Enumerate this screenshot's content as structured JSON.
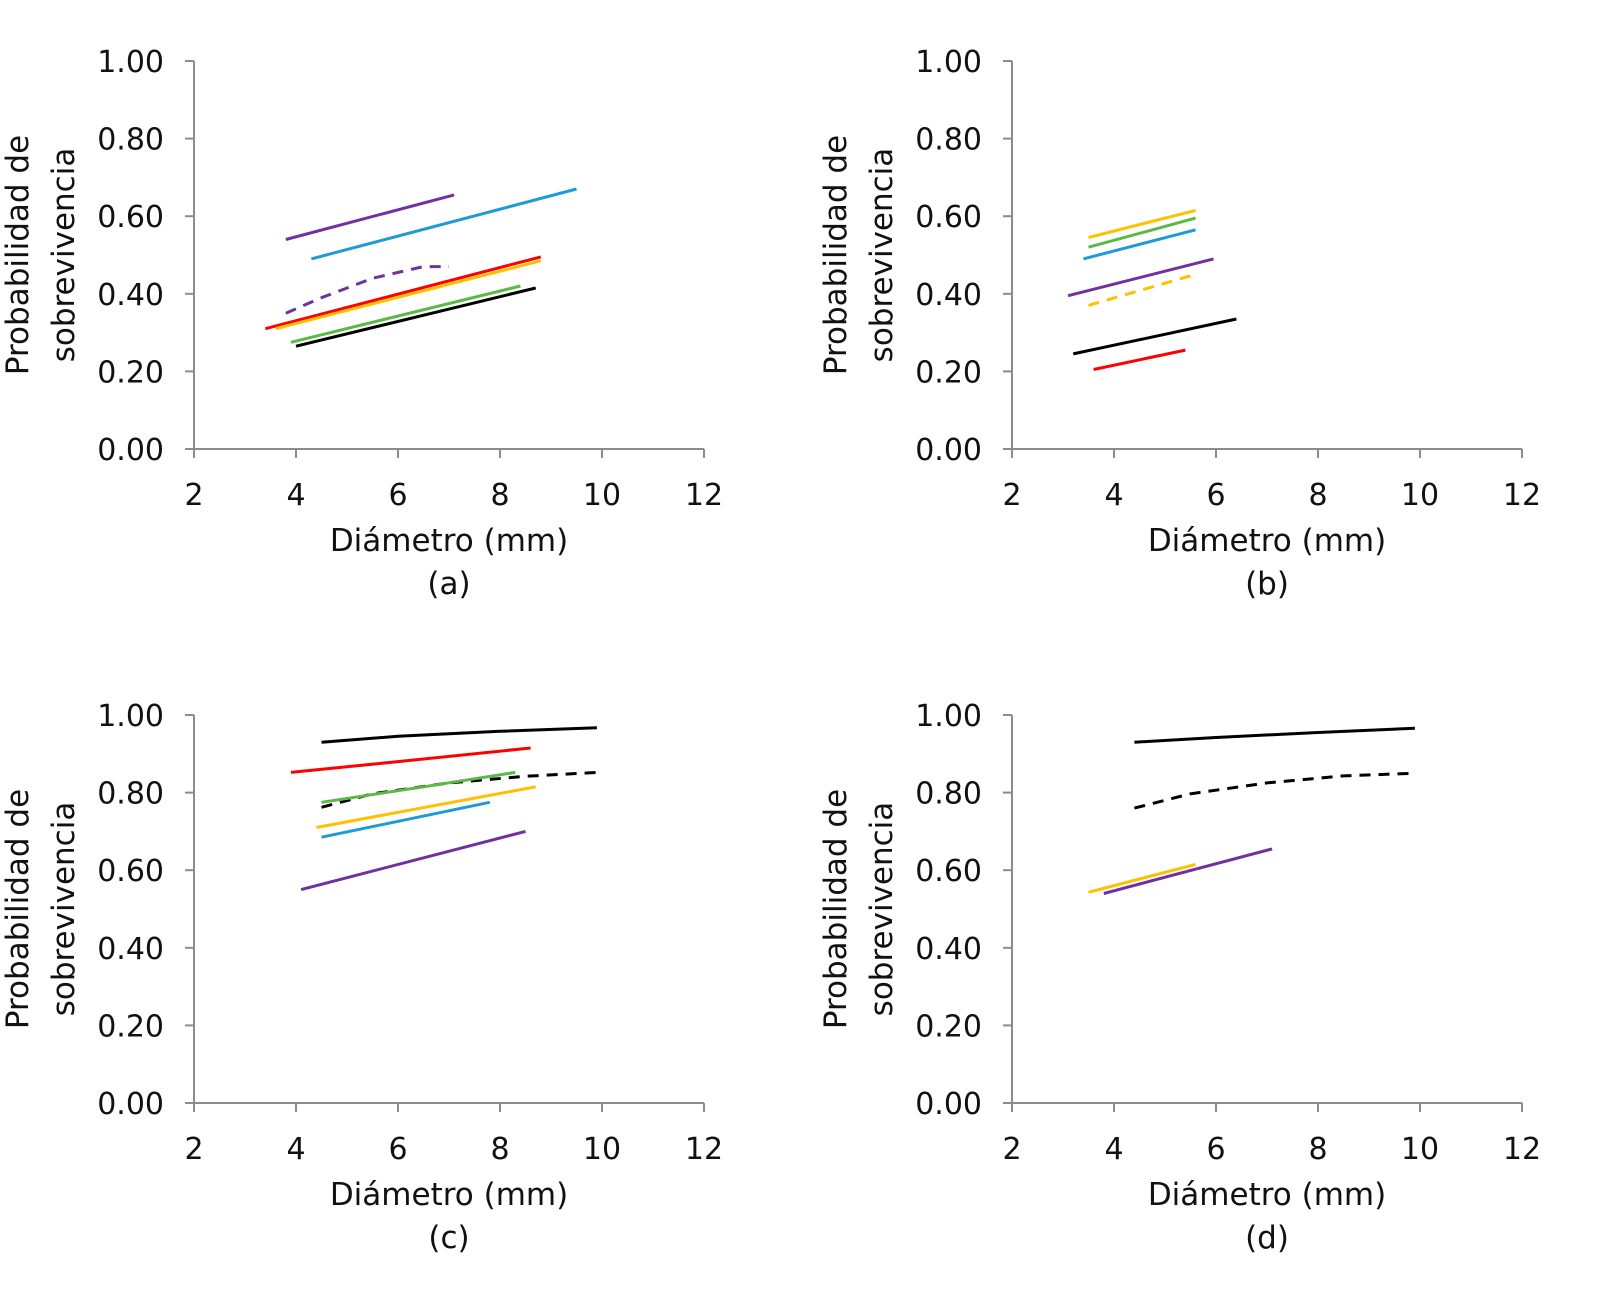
{
  "figure": {
    "panels": [
      "(a)",
      "(b)",
      "(c)",
      "(d)"
    ]
  },
  "colors": {
    "purple": "#7030A0",
    "blue": "#1E9BD7",
    "red": "#FF0000",
    "orange": "#FFC000",
    "green": "#5BB947",
    "black": "#000000"
  },
  "chart_data": [
    {
      "type": "line",
      "panel_label": "(a)",
      "xlabel": "Diámetro (mm)",
      "ylabel_line1": "Probabilidad de",
      "ylabel_line2": "sobrevivencia",
      "xlim": [
        2,
        12
      ],
      "ylim": [
        0,
        1
      ],
      "xticks": [
        "2",
        "4",
        "6",
        "8",
        "10",
        "12"
      ],
      "yticks": [
        "0.00",
        "0.20",
        "0.40",
        "0.60",
        "0.80",
        "1.00"
      ],
      "grid": false,
      "series": [
        {
          "color": "purple",
          "dashed": false,
          "x": [
            3.8,
            7.1
          ],
          "y": [
            0.54,
            0.655
          ]
        },
        {
          "color": "blue",
          "dashed": false,
          "x": [
            4.3,
            9.5
          ],
          "y": [
            0.49,
            0.67
          ]
        },
        {
          "color": "purple",
          "dashed": true,
          "x": [
            3.8,
            4.5,
            5.5,
            6.5,
            7.0
          ],
          "y": [
            0.35,
            0.39,
            0.44,
            0.47,
            0.47
          ]
        },
        {
          "color": "red",
          "dashed": false,
          "x": [
            3.4,
            8.8
          ],
          "y": [
            0.31,
            0.495
          ]
        },
        {
          "color": "orange",
          "dashed": false,
          "x": [
            3.6,
            8.8
          ],
          "y": [
            0.31,
            0.485
          ]
        },
        {
          "color": "green",
          "dashed": false,
          "x": [
            3.9,
            8.4
          ],
          "y": [
            0.275,
            0.42
          ]
        },
        {
          "color": "black",
          "dashed": false,
          "x": [
            4.0,
            8.7
          ],
          "y": [
            0.265,
            0.415
          ]
        }
      ]
    },
    {
      "type": "line",
      "panel_label": "(b)",
      "xlabel": "Diámetro (mm)",
      "ylabel_line1": "Probabilidad de",
      "ylabel_line2": "sobrevivencia",
      "xlim": [
        2,
        12
      ],
      "ylim": [
        0,
        1
      ],
      "xticks": [
        "2",
        "4",
        "6",
        "8",
        "10",
        "12"
      ],
      "yticks": [
        "0.00",
        "0.20",
        "0.40",
        "0.60",
        "0.80",
        "1.00"
      ],
      "grid": false,
      "series": [
        {
          "color": "orange",
          "dashed": false,
          "x": [
            3.5,
            5.6
          ],
          "y": [
            0.545,
            0.615
          ]
        },
        {
          "color": "green",
          "dashed": false,
          "x": [
            3.5,
            5.6
          ],
          "y": [
            0.52,
            0.595
          ]
        },
        {
          "color": "blue",
          "dashed": false,
          "x": [
            3.4,
            5.6
          ],
          "y": [
            0.49,
            0.565
          ]
        },
        {
          "color": "purple",
          "dashed": false,
          "x": [
            3.1,
            5.95
          ],
          "y": [
            0.395,
            0.49
          ]
        },
        {
          "color": "orange",
          "dashed": true,
          "x": [
            3.5,
            5.6
          ],
          "y": [
            0.37,
            0.45
          ]
        },
        {
          "color": "black",
          "dashed": false,
          "x": [
            3.2,
            6.4
          ],
          "y": [
            0.245,
            0.335
          ]
        },
        {
          "color": "red",
          "dashed": false,
          "x": [
            3.6,
            5.4
          ],
          "y": [
            0.205,
            0.255
          ]
        }
      ]
    },
    {
      "type": "line",
      "panel_label": "(c)",
      "xlabel": "Diámetro (mm)",
      "ylabel_line1": "Probabilidad de",
      "ylabel_line2": "sobrevivencia",
      "xlim": [
        2,
        12
      ],
      "ylim": [
        0,
        1
      ],
      "xticks": [
        "2",
        "4",
        "6",
        "8",
        "10",
        "12"
      ],
      "yticks": [
        "0.00",
        "0.20",
        "0.40",
        "0.60",
        "0.80",
        "1.00"
      ],
      "grid": false,
      "series": [
        {
          "color": "black",
          "dashed": false,
          "x": [
            4.5,
            6.0,
            8.0,
            9.9
          ],
          "y": [
            0.93,
            0.945,
            0.958,
            0.967
          ]
        },
        {
          "color": "red",
          "dashed": false,
          "x": [
            3.9,
            6.0,
            8.6
          ],
          "y": [
            0.852,
            0.88,
            0.915
          ]
        },
        {
          "color": "black",
          "dashed": true,
          "x": [
            4.5,
            5.5,
            7.0,
            8.5,
            9.9
          ],
          "y": [
            0.762,
            0.797,
            0.825,
            0.842,
            0.852
          ]
        },
        {
          "color": "green",
          "dashed": false,
          "x": [
            4.5,
            6.5,
            8.3
          ],
          "y": [
            0.775,
            0.815,
            0.852
          ]
        },
        {
          "color": "orange",
          "dashed": false,
          "x": [
            4.4,
            8.7
          ],
          "y": [
            0.71,
            0.815
          ]
        },
        {
          "color": "blue",
          "dashed": false,
          "x": [
            4.5,
            7.8
          ],
          "y": [
            0.685,
            0.775
          ]
        },
        {
          "color": "purple",
          "dashed": false,
          "x": [
            4.1,
            8.5
          ],
          "y": [
            0.55,
            0.7
          ]
        }
      ]
    },
    {
      "type": "line",
      "panel_label": "(d)",
      "xlabel": "Diámetro (mm)",
      "ylabel_line1": "Probabilidad de",
      "ylabel_line2": "sobrevivencia",
      "xlim": [
        2,
        12
      ],
      "ylim": [
        0,
        1
      ],
      "xticks": [
        "2",
        "4",
        "6",
        "8",
        "10",
        "12"
      ],
      "yticks": [
        "0.00",
        "0.20",
        "0.40",
        "0.60",
        "0.80",
        "1.00"
      ],
      "grid": false,
      "series": [
        {
          "color": "black",
          "dashed": false,
          "x": [
            4.4,
            6.0,
            8.0,
            9.9
          ],
          "y": [
            0.93,
            0.942,
            0.955,
            0.966
          ]
        },
        {
          "color": "black",
          "dashed": true,
          "x": [
            4.4,
            5.5,
            7.0,
            8.5,
            9.9
          ],
          "y": [
            0.76,
            0.797,
            0.825,
            0.843,
            0.85
          ]
        },
        {
          "color": "orange",
          "dashed": false,
          "x": [
            3.5,
            5.6
          ],
          "y": [
            0.543,
            0.615
          ]
        },
        {
          "color": "purple",
          "dashed": false,
          "x": [
            3.8,
            7.1
          ],
          "y": [
            0.54,
            0.655
          ]
        }
      ]
    }
  ]
}
